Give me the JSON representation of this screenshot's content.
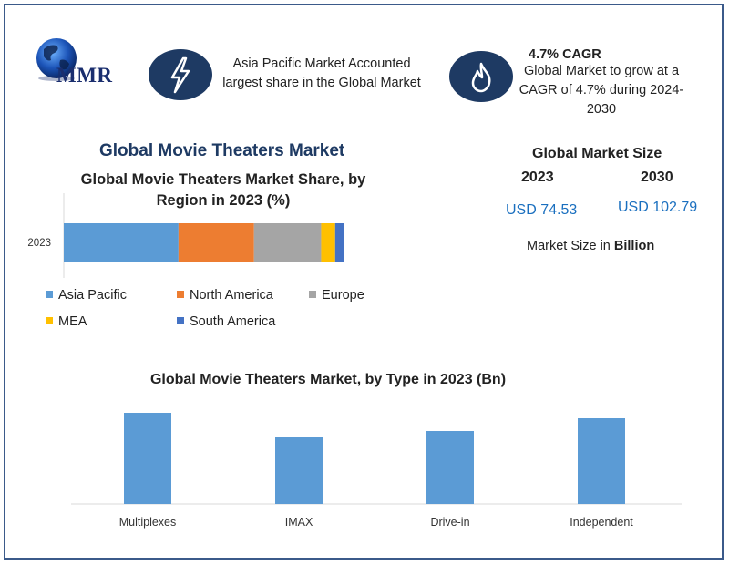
{
  "logo": {
    "text": "MMR"
  },
  "callouts": {
    "region_text": "Asia Pacific Market Accounted largest share in the Global Market",
    "cagr_title": "4.7% CAGR",
    "cagr_text": "Global Market to grow at a CAGR of 4.7% during 2024-2030",
    "region_icon": "lightning-bolt-icon",
    "cagr_icon": "flame-icon"
  },
  "main_title": "Global Movie Theaters Market",
  "market_size": {
    "title": "Global Market Size",
    "year_a": "2023",
    "year_b": "2030",
    "value_a": "USD 74.53",
    "value_b": "USD 102.79",
    "note_prefix": "Market Size in ",
    "note_unit": "Billion"
  },
  "colors": {
    "asia_pacific": "#5b9bd5",
    "north_america": "#ed7d31",
    "europe": "#a5a5a5",
    "mea": "#ffc000",
    "south_america": "#4472c4",
    "icon_bg": "#1e3a63",
    "frame": "#3b5a8a"
  },
  "chart_data": [
    {
      "type": "bar",
      "orientation": "horizontal-stacked",
      "title": "Global Movie Theaters Market Share, by Region in 2023 (%)",
      "categories": [
        "2023"
      ],
      "series": [
        {
          "name": "Asia Pacific",
          "values": [
            41
          ],
          "color": "#5b9bd5"
        },
        {
          "name": "North America",
          "values": [
            27
          ],
          "color": "#ed7d31"
        },
        {
          "name": "Europe",
          "values": [
            24
          ],
          "color": "#a5a5a5"
        },
        {
          "name": "MEA",
          "values": [
            5
          ],
          "color": "#ffc000"
        },
        {
          "name": "South America",
          "values": [
            3
          ],
          "color": "#4472c4"
        }
      ],
      "xlim": [
        0,
        100
      ],
      "legend": "bottom",
      "grid": false
    },
    {
      "type": "bar",
      "title": "Global Movie Theaters Market, by Type in 2023 (Bn)",
      "categories": [
        "Multiplexes",
        "IMAX",
        "Drive-in",
        "Independent"
      ],
      "values": [
        100,
        74,
        80,
        94
      ],
      "color": "#5b9bd5",
      "ylim": [
        0,
        106
      ],
      "grid": false
    }
  ]
}
